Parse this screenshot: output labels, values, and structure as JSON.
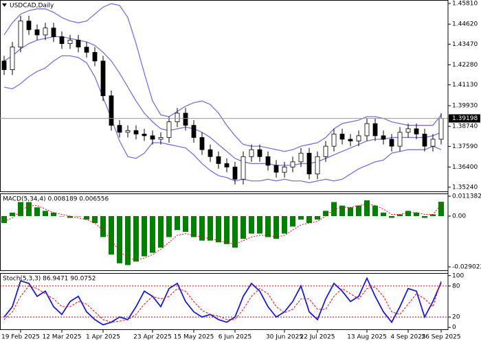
{
  "chart_data": [
    {
      "type": "candlestick",
      "title": "USDCAD,Daily",
      "categories": [
        null,
        null,
        "19 Feb 2025",
        null,
        null,
        null,
        null,
        "12 Mar 2025",
        null,
        null,
        null,
        null,
        "1 Apr 2025",
        null,
        null,
        null,
        null,
        null,
        "23 Apr 2025",
        null,
        null,
        null,
        null,
        "15 May 2025",
        null,
        null,
        null,
        null,
        "6 Jun 2025",
        null,
        null,
        null,
        null,
        null,
        "30 Jun 2025",
        null,
        null,
        null,
        "22 Jul 2025",
        null,
        null,
        null,
        null,
        null,
        "13 Aug 2025",
        null,
        null,
        null,
        null,
        "4 Sep 2025",
        null,
        null,
        null,
        "26 Sep 2025"
      ],
      "open": [
        1.425,
        1.42,
        1.433,
        1.448,
        1.443,
        1.44,
        1.444,
        1.439,
        1.435,
        1.437,
        1.433,
        1.43,
        1.425,
        1.405,
        1.388,
        1.384,
        1.385,
        1.383,
        1.382,
        1.38,
        1.381,
        1.39,
        1.395,
        1.388,
        1.381,
        1.374,
        1.37,
        1.366,
        1.364,
        1.357,
        1.37,
        1.374,
        1.37,
        1.365,
        1.361,
        1.364,
        1.367,
        1.372,
        1.36,
        1.37,
        1.376,
        1.383,
        1.38,
        1.379,
        1.382,
        1.389,
        1.382,
        1.38,
        1.376,
        1.384,
        1.386,
        1.383,
        1.376,
        1.38
      ],
      "high": [
        1.428,
        1.436,
        1.451,
        1.451,
        1.446,
        1.447,
        1.447,
        1.442,
        1.44,
        1.44,
        1.436,
        1.433,
        1.428,
        1.408,
        1.391,
        1.388,
        1.388,
        1.386,
        1.385,
        1.384,
        1.393,
        1.398,
        1.398,
        1.391,
        1.384,
        1.377,
        1.373,
        1.369,
        1.367,
        1.373,
        1.377,
        1.377,
        1.373,
        1.368,
        1.367,
        1.37,
        1.375,
        1.375,
        1.373,
        1.379,
        1.386,
        1.386,
        1.383,
        1.385,
        1.392,
        1.392,
        1.385,
        1.383,
        1.387,
        1.389,
        1.389,
        1.386,
        1.383,
        1.395
      ],
      "low": [
        1.417,
        1.417,
        1.43,
        1.44,
        1.437,
        1.437,
        1.436,
        1.432,
        1.432,
        1.43,
        1.427,
        1.422,
        1.402,
        1.385,
        1.381,
        1.381,
        1.38,
        1.379,
        1.377,
        1.377,
        1.378,
        1.387,
        1.385,
        1.378,
        1.371,
        1.367,
        1.363,
        1.361,
        1.354,
        1.354,
        1.367,
        1.367,
        1.362,
        1.358,
        1.358,
        1.361,
        1.364,
        1.357,
        1.357,
        1.367,
        1.373,
        1.377,
        1.376,
        1.376,
        1.379,
        1.379,
        1.377,
        1.373,
        1.373,
        1.381,
        1.38,
        1.373,
        1.373,
        1.377
      ],
      "close": [
        1.42,
        1.433,
        1.448,
        1.443,
        1.44,
        1.444,
        1.439,
        1.435,
        1.437,
        1.433,
        1.43,
        1.425,
        1.405,
        1.388,
        1.384,
        1.385,
        1.383,
        1.382,
        1.38,
        1.381,
        1.39,
        1.395,
        1.388,
        1.381,
        1.374,
        1.37,
        1.366,
        1.364,
        1.357,
        1.37,
        1.374,
        1.37,
        1.365,
        1.361,
        1.364,
        1.367,
        1.372,
        1.36,
        1.37,
        1.376,
        1.383,
        1.38,
        1.379,
        1.382,
        1.389,
        1.382,
        1.38,
        1.376,
        1.384,
        1.386,
        1.383,
        1.376,
        1.38,
        1.392
      ],
      "up_color": "#ffffff",
      "down_color": "#000000",
      "lines": [
        {
          "color": "#7b6ee6",
          "values": [
            1.44,
            1.447,
            1.452,
            1.454,
            1.455,
            1.455,
            1.453,
            1.45,
            1.448,
            1.447,
            1.448,
            1.452,
            1.456,
            1.458,
            1.457,
            1.45,
            1.435,
            1.418,
            1.402,
            1.394,
            1.393,
            1.396,
            1.399,
            1.401,
            1.402,
            1.4,
            1.395,
            1.388,
            1.382,
            1.377,
            1.376,
            1.376,
            1.375,
            1.374,
            1.373,
            1.374,
            1.376,
            1.377,
            1.378,
            1.381,
            1.386,
            1.389,
            1.39,
            1.391,
            1.393,
            1.393,
            1.392,
            1.39,
            1.389,
            1.388,
            1.388,
            1.388,
            1.388,
            1.394
          ]
        },
        {
          "color": "#7b6ee6",
          "values": [
            1.425,
            1.428,
            1.432,
            1.435,
            1.437,
            1.438,
            1.439,
            1.439,
            1.438,
            1.437,
            1.436,
            1.434,
            1.43,
            1.425,
            1.418,
            1.41,
            1.402,
            1.395,
            1.39,
            1.386,
            1.385,
            1.386,
            1.387,
            1.386,
            1.384,
            1.381,
            1.377,
            1.373,
            1.369,
            1.367,
            1.366,
            1.366,
            1.366,
            1.365,
            1.365,
            1.365,
            1.366,
            1.366,
            1.367,
            1.369,
            1.371,
            1.373,
            1.375,
            1.377,
            1.379,
            1.38,
            1.38,
            1.381,
            1.381,
            1.381,
            1.381,
            1.381,
            1.382,
            1.384
          ]
        },
        {
          "color": "#7b6ee6",
          "values": [
            1.41,
            1.409,
            1.412,
            1.416,
            1.419,
            1.421,
            1.425,
            1.428,
            1.428,
            1.427,
            1.424,
            1.416,
            1.404,
            1.392,
            1.379,
            1.37,
            1.369,
            1.372,
            1.378,
            1.378,
            1.377,
            1.376,
            1.375,
            1.371,
            1.366,
            1.362,
            1.359,
            1.358,
            1.356,
            1.357,
            1.356,
            1.356,
            1.357,
            1.356,
            1.357,
            1.356,
            1.356,
            1.355,
            1.356,
            1.357,
            1.356,
            1.357,
            1.36,
            1.363,
            1.365,
            1.367,
            1.368,
            1.372,
            1.373,
            1.374,
            1.374,
            1.374,
            1.376,
            1.374
          ]
        }
      ],
      "last_price": 1.39198,
      "ylim": [
        1.3496,
        1.4601
      ],
      "yticks": [
        {
          "value": 1.4581,
          "label": "1.45810"
        },
        {
          "value": 1.4462,
          "label": "1.44620"
        },
        {
          "value": 1.4347,
          "label": "1.43470"
        },
        {
          "value": 1.4228,
          "label": "1.42280"
        },
        {
          "value": 1.4113,
          "label": "1.41130"
        },
        {
          "value": 1.3993,
          "label": "1.39930"
        },
        {
          "value": 1.3874,
          "label": "1.38740"
        },
        {
          "value": 1.3759,
          "label": "1.37590"
        },
        {
          "value": 1.364,
          "label": "1.36400"
        },
        {
          "value": 1.3524,
          "label": "1.35240"
        }
      ]
    },
    {
      "type": "macd",
      "title": "MACD(5,34,4) 0.008189 0.006556",
      "histogram": {
        "color": "#008000",
        "values": [
          -0.004,
          0.002,
          0.008,
          0.008,
          0.005,
          0.003,
          0.002,
          0.0,
          -0.001,
          0.0,
          -0.002,
          -0.004,
          -0.012,
          -0.022,
          -0.027,
          -0.028,
          -0.026,
          -0.023,
          -0.021,
          -0.018,
          -0.012,
          -0.008,
          -0.009,
          -0.012,
          -0.014,
          -0.014,
          -0.015,
          -0.016,
          -0.018,
          -0.013,
          -0.01,
          -0.01,
          -0.012,
          -0.013,
          -0.01,
          -0.006,
          -0.002,
          -0.004,
          -0.002,
          0.003,
          0.008,
          0.006,
          0.005,
          0.006,
          0.009,
          0.006,
          0.002,
          -0.001,
          0.001,
          0.003,
          0.002,
          -0.001,
          0.001,
          0.008189
        ]
      },
      "signal": {
        "color": "#ff0000",
        "values": [
          -0.003,
          -0.001,
          0.003,
          0.006,
          0.006,
          0.004,
          0.002,
          0.001,
          0.0,
          -0.001,
          -0.002,
          -0.004,
          -0.008,
          -0.014,
          -0.02,
          -0.024,
          -0.025,
          -0.024,
          -0.022,
          -0.019,
          -0.015,
          -0.011,
          -0.01,
          -0.011,
          -0.012,
          -0.013,
          -0.014,
          -0.015,
          -0.016,
          -0.014,
          -0.012,
          -0.011,
          -0.011,
          -0.012,
          -0.011,
          -0.008,
          -0.005,
          -0.004,
          -0.003,
          0.0,
          0.004,
          0.005,
          0.005,
          0.006,
          0.007,
          0.006,
          0.004,
          0.001,
          0.001,
          0.002,
          0.002,
          0.001,
          0.001,
          0.006556
        ]
      },
      "ylim": [
        -0.03138,
        0.01295
      ],
      "yticks": [
        0.011382,
        {
          "value": 0,
          "label": "0.00"
        },
        -0.029022
      ]
    },
    {
      "type": "stochastic",
      "title": "Stoch(5,3,3) 86.9471 90.0752",
      "main": {
        "color": "#1a1ad6",
        "values": [
          20,
          40,
          90,
          85,
          60,
          70,
          40,
          25,
          50,
          60,
          30,
          15,
          5,
          10,
          20,
          15,
          40,
          70,
          60,
          40,
          75,
          85,
          50,
          30,
          20,
          25,
          15,
          10,
          20,
          60,
          85,
          70,
          40,
          20,
          30,
          50,
          80,
          30,
          15,
          55,
          85,
          70,
          50,
          60,
          95,
          60,
          30,
          10,
          40,
          75,
          70,
          20,
          50,
          86.9471
        ]
      },
      "signal": {
        "color": "#ff0000",
        "values": [
          15,
          30,
          60,
          80,
          75,
          65,
          55,
          40,
          40,
          50,
          45,
          30,
          15,
          10,
          12,
          15,
          25,
          45,
          60,
          55,
          60,
          75,
          70,
          50,
          33,
          25,
          22,
          15,
          15,
          35,
          60,
          75,
          65,
          40,
          28,
          35,
          55,
          55,
          35,
          35,
          60,
          75,
          65,
          55,
          75,
          78,
          60,
          30,
          25,
          45,
          65,
          55,
          40,
          90.0752
        ]
      },
      "ylim": [
        -5,
        105
      ],
      "yticks": [
        100,
        80,
        20,
        0
      ]
    }
  ]
}
